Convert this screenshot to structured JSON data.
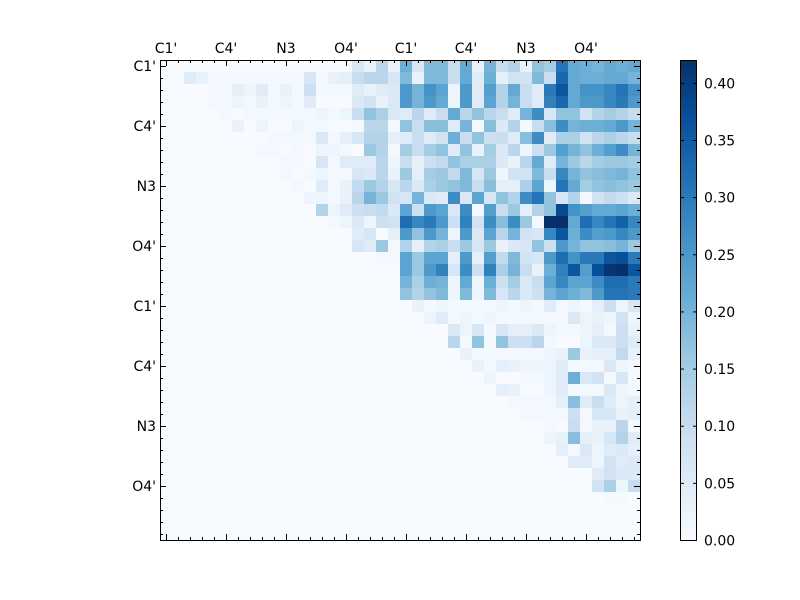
{
  "chart_data": {
    "type": "heatmap",
    "title": "",
    "xlabel": "",
    "ylabel": "",
    "colormap": "Blues",
    "vmin": 0.0,
    "vmax": 0.42,
    "n": 40,
    "xticklabels": [
      "C1'",
      "C4'",
      "N3",
      "O4'",
      "C1'",
      "C4'",
      "N3",
      "O4'"
    ],
    "yticklabels": [
      "C1'",
      "C4'",
      "N3",
      "O4'",
      "C1'",
      "C4'",
      "N3",
      "O4'"
    ],
    "tick_step": 5,
    "colorbar": {
      "ticks": [
        0.0,
        0.05,
        0.1,
        0.15,
        0.2,
        0.25,
        0.3,
        0.35,
        0.4
      ],
      "ticklabels": [
        "0.00",
        "0.05",
        "0.10",
        "0.15",
        "0.20",
        "0.25",
        "0.30",
        "0.35",
        "0.40"
      ]
    },
    "rows": [
      {
        "start": 16,
        "v": [
          0.07,
          0.03,
          0.12,
          0.03,
          0.21,
          0.07,
          0.19,
          0.19,
          0.1,
          0.22,
          0.03,
          0.2,
          0.1,
          0.13,
          0.03,
          0.17,
          0.15,
          0.31,
          0.22,
          0.21,
          0.2,
          0.22,
          0.21,
          0.22
        ]
      },
      {
        "start": 2,
        "v": [
          0.05,
          0.03,
          0.01,
          0.01,
          0.01,
          0.01,
          0.01,
          0.01,
          0.01,
          0.01,
          0.07,
          0.01,
          0.03,
          0.04,
          0.1,
          0.12,
          0.12,
          0.07,
          0.19,
          0.03,
          0.19,
          0.19,
          0.1,
          0.22,
          0.05,
          0.21,
          0.04,
          0.08,
          0.08,
          0.19,
          0.1,
          0.33,
          0.22,
          0.21,
          0.21,
          0.22,
          0.22,
          0.2
        ]
      },
      {
        "start": 4,
        "v": [
          0.01,
          0.01,
          0.04,
          0.02,
          0.05,
          0.01,
          0.03,
          0.01,
          0.09,
          0.01,
          0.01,
          0.01,
          0.05,
          0.03,
          0.05,
          0.06,
          0.25,
          0.2,
          0.26,
          0.23,
          0.02,
          0.25,
          0.05,
          0.24,
          0.13,
          0.22,
          0.1,
          0.05,
          0.3,
          0.36,
          0.22,
          0.26,
          0.26,
          0.28,
          0.31,
          0.26
        ]
      },
      {
        "start": 4,
        "v": [
          0.01,
          0.01,
          0.02,
          0.01,
          0.03,
          0.01,
          0.02,
          0.01,
          0.05,
          0,
          0,
          0,
          0.06,
          0.08,
          0.03,
          0.06,
          0.25,
          0.2,
          0.25,
          0.22,
          0.02,
          0.25,
          0.05,
          0.23,
          0.13,
          0.2,
          0.1,
          0.05,
          0.29,
          0.33,
          0.22,
          0.25,
          0.25,
          0.28,
          0.3,
          0.25
        ]
      },
      {
        "start": 5,
        "v": [
          0.01,
          0,
          0.01,
          0.01,
          0.01,
          0.01,
          0.01,
          0.01,
          0.02,
          0.01,
          0.02,
          0.1,
          0.17,
          0.14,
          0.06,
          0.05,
          0.12,
          0.05,
          0.1,
          0.22,
          0.12,
          0.17,
          0.12,
          0.1,
          0.05,
          0.2,
          0.27,
          0.07,
          0.17,
          0.17,
          0.08,
          0.13,
          0.15,
          0.13,
          0.1
        ]
      },
      {
        "start": 6,
        "v": [
          0.03,
          0,
          0.02,
          0,
          0,
          0.02,
          0.01,
          0.01,
          0,
          0,
          0.01,
          0.12,
          0.12,
          0.01,
          0.17,
          0.1,
          0.18,
          0.18,
          0.05,
          0.2,
          0.01,
          0.18,
          0.06,
          0.13,
          0.01,
          0.1,
          0.18,
          0.27,
          0.2,
          0.21,
          0.21,
          0.22,
          0.25,
          0.2
        ]
      },
      {
        "start": 9,
        "v": [
          0.01,
          0.01,
          0.01,
          0.01,
          0.06,
          0.01,
          0.04,
          0.07,
          0.13,
          0.13,
          0.04,
          0.05,
          0.1,
          0.05,
          0.08,
          0.21,
          0.1,
          0.17,
          0.09,
          0.1,
          0.05,
          0.18,
          0.27,
          0.05,
          0.14,
          0.14,
          0.08,
          0.12,
          0.14,
          0.12,
          0.1
        ]
      },
      {
        "start": 8,
        "v": [
          0.01,
          0.01,
          0,
          0.01,
          0,
          0.02,
          0.02,
          0.01,
          0,
          0.16,
          0.13,
          0.01,
          0.15,
          0.1,
          0.15,
          0.17,
          0.05,
          0.17,
          0.03,
          0.15,
          0.06,
          0.12,
          0.02,
          0.09,
          0.16,
          0.24,
          0.2,
          0.17,
          0.21,
          0.24,
          0.27,
          0.2
        ]
      },
      {
        "start": 10,
        "v": [
          0.01,
          0.01,
          0,
          0.07,
          0.01,
          0.05,
          0.05,
          0.05,
          0.12,
          0.02,
          0.1,
          0.04,
          0.09,
          0.11,
          0.17,
          0.14,
          0.14,
          0.14,
          0.06,
          0.03,
          0.12,
          0.22,
          0.05,
          0.2,
          0.16,
          0.12,
          0.15,
          0.16,
          0.16,
          0.15
        ]
      },
      {
        "start": 10,
        "v": [
          0.01,
          0,
          0.01,
          0.02,
          0.01,
          0.01,
          0.07,
          0.06,
          0.12,
          0.03,
          0.16,
          0.04,
          0.15,
          0.16,
          0.11,
          0.19,
          0.07,
          0.16,
          0.02,
          0.08,
          0.08,
          0.19,
          0.1,
          0.28,
          0.2,
          0.17,
          0.18,
          0.19,
          0.2,
          0.17
        ]
      },
      {
        "start": 11,
        "v": [
          0.01,
          0,
          0.05,
          0.01,
          0.03,
          0.11,
          0.16,
          0.13,
          0.07,
          0.12,
          0.06,
          0.14,
          0.16,
          0.17,
          0.19,
          0.1,
          0.18,
          0.04,
          0.04,
          0.14,
          0.23,
          0.02,
          0.31,
          0.22,
          0.15,
          0.17,
          0.18,
          0.17,
          0.16
        ]
      },
      {
        "start": 12,
        "v": [
          0.02,
          0.02,
          0.01,
          0.03,
          0.12,
          0.2,
          0.16,
          0.08,
          0.07,
          0.2,
          0.06,
          0.05,
          0.27,
          0.06,
          0.23,
          0.07,
          0.17,
          0.13,
          0.27,
          0.31,
          0.17,
          0.07,
          0.13,
          0.01,
          0.08,
          0.11,
          0.09,
          0.06
        ]
      },
      {
        "start": 13,
        "v": [
          0.13,
          0.02,
          0.05,
          0.09,
          0.1,
          0.11,
          0.06,
          0.23,
          0.09,
          0.25,
          0.23,
          0.06,
          0.27,
          0.01,
          0.24,
          0.1,
          0.16,
          0.04,
          0.13,
          0.17,
          0.38,
          0.26,
          0.24,
          0.22,
          0.22,
          0.23,
          0.21
        ]
      },
      {
        "start": 14,
        "v": [
          0.01,
          0.02,
          0.06,
          0.02,
          0.09,
          0.08,
          0.32,
          0.28,
          0.3,
          0.25,
          0.09,
          0.29,
          0.08,
          0.27,
          0.18,
          0.27,
          0.16,
          0.01,
          0.42,
          0.42,
          0.22,
          0.32,
          0.28,
          0.31,
          0.34,
          0.28
        ]
      },
      {
        "start": 16,
        "v": [
          0.05,
          0.07,
          0,
          0.04,
          0.25,
          0.17,
          0.25,
          0.2,
          0.02,
          0.25,
          0.06,
          0.23,
          0.12,
          0.2,
          0.08,
          0.07,
          0.28,
          0.36,
          0.21,
          0.27,
          0.24,
          0.25,
          0.28,
          0.25
        ]
      },
      {
        "start": 16,
        "v": [
          0.07,
          0.05,
          0.16,
          0.01,
          0.13,
          0.04,
          0.13,
          0.14,
          0.1,
          0.16,
          0.07,
          0.16,
          0.03,
          0.06,
          0.07,
          0.17,
          0.09,
          0.25,
          0.2,
          0.17,
          0.17,
          0.18,
          0.2,
          0.16
        ]
      },
      {
        "start": 18,
        "v": [
          0.01,
          0.01,
          0.23,
          0.16,
          0.23,
          0.23,
          0.04,
          0.25,
          0.04,
          0.24,
          0.11,
          0.19,
          0.08,
          0.07,
          0.25,
          0.32,
          0.26,
          0.3,
          0.3,
          0.36,
          0.37,
          0.3
        ]
      },
      {
        "start": 20,
        "v": [
          0.23,
          0.16,
          0.25,
          0.29,
          0.07,
          0.27,
          0.09,
          0.29,
          0.14,
          0.2,
          0.1,
          0.03,
          0.21,
          0.29,
          0.36,
          0.24,
          0.37,
          0.41,
          0.42,
          0.36
        ]
      },
      {
        "start": 20,
        "v": [
          0.2,
          0.14,
          0.21,
          0.2,
          0.02,
          0.22,
          0.02,
          0.21,
          0.09,
          0.15,
          0.06,
          0.1,
          0.23,
          0.28,
          0.23,
          0.23,
          0.27,
          0.32,
          0.32,
          0.3
        ]
      },
      {
        "start": 20,
        "v": [
          0.17,
          0.13,
          0.17,
          0.19,
          0.02,
          0.19,
          0.02,
          0.19,
          0.07,
          0.12,
          0.06,
          0.09,
          0.2,
          0.23,
          0.21,
          0.19,
          0.25,
          0.31,
          0.31,
          0.3
        ]
      },
      {
        "start": 21,
        "v": [
          0.03,
          0.01,
          0.02,
          0.01,
          0.01,
          0.01,
          0.01,
          0.02,
          0.01,
          0.02,
          0.01,
          0.05,
          0.01,
          0.02,
          0.01,
          0.04,
          0.09,
          0.02,
          0.07
        ]
      },
      {
        "start": 22,
        "v": [
          0.02,
          0.05,
          0.01,
          0.02,
          0.01,
          0.02,
          0.01,
          0.01,
          0.01,
          0.01,
          0.01,
          0.01,
          0.06,
          0.02,
          0.03,
          0.02,
          0.08,
          0.02
        ]
      },
      {
        "start": 24,
        "v": [
          0.06,
          0.02,
          0.07,
          0.01,
          0.07,
          0.04,
          0.04,
          0.06,
          0.02,
          0.01,
          0.01,
          0.02,
          0.04,
          0.01,
          0.09,
          0.03
        ]
      },
      {
        "start": 24,
        "v": [
          0.12,
          0.01,
          0.17,
          0.01,
          0.17,
          0.09,
          0.09,
          0.12,
          0.01,
          0,
          0,
          0.02,
          0.06,
          0.06,
          0.09,
          0.05
        ]
      },
      {
        "start": 25,
        "v": [
          0.03,
          0.01,
          0.01,
          0.01,
          0.01,
          0.01,
          0.01,
          0.02,
          0.03,
          0.16,
          0.03,
          0.04,
          0.04,
          0.11,
          0.03
        ]
      },
      {
        "start": 26,
        "v": [
          0.03,
          0.01,
          0.04,
          0.03,
          0.02,
          0.02,
          0.02,
          0.05,
          0.01,
          0.01,
          0.01,
          0.06,
          0.02,
          0.01
        ]
      },
      {
        "start": 27,
        "v": [
          0.02,
          0,
          0,
          0.01,
          0.01,
          0.02,
          0.05,
          0.21,
          0.06,
          0.08,
          0.01,
          0.07,
          0.01
        ]
      },
      {
        "start": 28,
        "v": [
          0.04,
          0.03,
          0,
          0,
          0.02,
          0.05,
          0.01,
          0.01,
          0.01,
          0.06,
          0.02,
          0.01
        ]
      },
      {
        "start": 29,
        "v": [
          0.01,
          0.01,
          0.01,
          0.01,
          0.04,
          0.18,
          0.05,
          0.1,
          0.05,
          0.02,
          0.04
        ]
      },
      {
        "start": 30,
        "v": [
          0.01,
          0.01,
          0.01,
          0.01,
          0.09,
          0.01,
          0.07,
          0.07,
          0.03,
          0.04
        ]
      },
      {
        "start": 32,
        "v": [
          0.01,
          0,
          0.1,
          0.01,
          0.03,
          0.03,
          0.12,
          0.01
        ]
      },
      {
        "start": 32,
        "v": [
          0.02,
          0.03,
          0.18,
          0.04,
          0.03,
          0.07,
          0.13,
          0.05
        ]
      },
      {
        "start": 33,
        "v": [
          0.04,
          0.01,
          0.06,
          0.02,
          0.05,
          0.06,
          0.04
        ]
      },
      {
        "start": 34,
        "v": [
          0.05,
          0.05,
          0.02,
          0.08,
          0.05,
          0.06
        ]
      },
      {
        "start": 36,
        "v": [
          0.05,
          0.08,
          0.06,
          0.06
        ]
      },
      {
        "start": 36,
        "v": [
          0.08,
          0.14,
          0.02,
          0.1
        ]
      },
      {
        "start": 37,
        "v": [
          0.005,
          0.005,
          0
        ]
      },
      {
        "start": 40,
        "v": []
      },
      {
        "start": 40,
        "v": []
      },
      {
        "start": 40,
        "v": []
      }
    ]
  }
}
